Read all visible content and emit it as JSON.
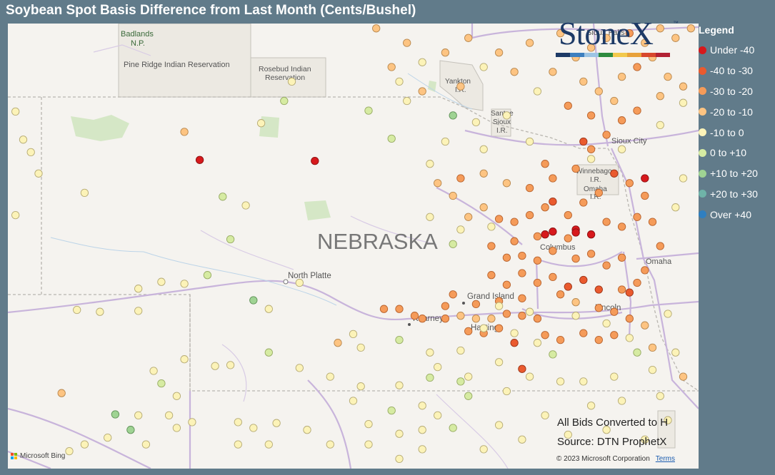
{
  "title": "Soybean Spot Basis Difference from Last Month (Cents/Bushel)",
  "legend": {
    "title": "Legend",
    "items": [
      {
        "label": "Under -40",
        "color": "#d7191c"
      },
      {
        "label": "-40 to -30",
        "color": "#ea5a2e"
      },
      {
        "label": "-30 to -20",
        "color": "#f59b59"
      },
      {
        "label": "-20 to -10",
        "color": "#fdc482"
      },
      {
        "label": "-10 to 0",
        "color": "#fcf3b8"
      },
      {
        "label": "0 to +10",
        "color": "#d6eba2"
      },
      {
        "label": "+10 to +20",
        "color": "#9fd393"
      },
      {
        "label": "+20 to +30",
        "color": "#6fb3a8"
      },
      {
        "label": "Over +40",
        "color": "#2f7fc0"
      }
    ]
  },
  "logo": {
    "text": "StoneX",
    "tm": "™"
  },
  "notes": {
    "line1": "All Bids Converted to H",
    "line2": "Source: DTN ProphetX"
  },
  "attribution": {
    "bing": "Microsoft Bing",
    "copyright": "© 2023 Microsoft Corporation",
    "terms": "Terms"
  },
  "map_labels": {
    "state": "NEBRASKA",
    "badlands": "Badlands",
    "badlands2": "N.P.",
    "pine_ridge": "Pine Ridge Indian Reservation",
    "rosebud1": "Rosebud Indian",
    "rosebud2": "Reservation",
    "yankton1": "Yankton",
    "yankton2": "I.R.",
    "santee1": "Santee",
    "santee2": "Sioux",
    "santee3": "I.R.",
    "winnebago1": "Winnebago",
    "winnebago2": "I.R.",
    "omaha_ir1": "Omaha",
    "omaha_ir2": "I.R.",
    "sioux_falls": "Sioux Falls",
    "sioux_city": "Sioux City",
    "columbus": "Columbus",
    "omaha": "Omaha",
    "north_platte": "North Platte",
    "grand_island": "Grand Island",
    "kearney": "Kearney",
    "hastings": "Hastings",
    "lincoln": "Lincoln"
  },
  "bids": [
    {
      "lon": -103.9,
      "lat": 42.69,
      "c": 4
    },
    {
      "lon": -103.8,
      "lat": 42.4,
      "c": 4
    },
    {
      "lon": -103.7,
      "lat": 42.27,
      "c": 4
    },
    {
      "lon": -103.6,
      "lat": 42.05,
      "c": 4
    },
    {
      "lon": -103.9,
      "lat": 41.62,
      "c": 4
    },
    {
      "lon": -103.0,
      "lat": 41.85,
      "c": 4
    },
    {
      "lon": -101.7,
      "lat": 42.48,
      "c": 3
    },
    {
      "lon": -101.5,
      "lat": 42.19,
      "c": 0
    },
    {
      "lon": -101.7,
      "lat": 40.91,
      "c": 4
    },
    {
      "lon": -102.0,
      "lat": 40.93,
      "c": 4
    },
    {
      "lon": -102.3,
      "lat": 40.86,
      "c": 4
    },
    {
      "lon": -102.8,
      "lat": 40.62,
      "c": 4
    },
    {
      "lon": -103.1,
      "lat": 40.64,
      "c": 4
    },
    {
      "lon": -101.4,
      "lat": 41.0,
      "c": 5
    },
    {
      "lon": -101.1,
      "lat": 41.37,
      "c": 5
    },
    {
      "lon": -100.9,
      "lat": 41.72,
      "c": 4
    },
    {
      "lon": -101.2,
      "lat": 41.81,
      "c": 5
    },
    {
      "lon": -100.7,
      "lat": 42.57,
      "c": 4
    },
    {
      "lon": -100.4,
      "lat": 42.8,
      "c": 5
    },
    {
      "lon": -100.3,
      "lat": 43.0,
      "c": 4
    },
    {
      "lon": -99.3,
      "lat": 42.7,
      "c": 5
    },
    {
      "lon": -99.0,
      "lat": 42.41,
      "c": 5
    },
    {
      "lon": -100.2,
      "lat": 40.92,
      "c": 4
    },
    {
      "lon": -100.8,
      "lat": 40.74,
      "c": 6
    },
    {
      "lon": -100.6,
      "lat": 40.65,
      "c": 4
    },
    {
      "lon": -99.5,
      "lat": 40.39,
      "c": 4
    },
    {
      "lon": -99.7,
      "lat": 40.3,
      "c": 3
    },
    {
      "lon": -99.4,
      "lat": 40.25,
      "c": 4
    },
    {
      "lon": -98.9,
      "lat": 40.33,
      "c": 5
    },
    {
      "lon": -98.5,
      "lat": 40.2,
      "c": 4
    },
    {
      "lon": -101.7,
      "lat": 40.13,
      "c": 4
    },
    {
      "lon": -101.3,
      "lat": 40.06,
      "c": 4
    },
    {
      "lon": -101.1,
      "lat": 40.07,
      "c": 4
    },
    {
      "lon": -100.6,
      "lat": 40.2,
      "c": 5
    },
    {
      "lon": -100.2,
      "lat": 40.04,
      "c": 4
    },
    {
      "lon": -99.8,
      "lat": 39.95,
      "c": 4
    },
    {
      "lon": -99.4,
      "lat": 39.85,
      "c": 4
    },
    {
      "lon": -98.9,
      "lat": 39.86,
      "c": 4
    },
    {
      "lon": -98.5,
      "lat": 39.94,
      "c": 5
    },
    {
      "lon": -98.0,
      "lat": 39.95,
      "c": 4
    },
    {
      "lon": -99.5,
      "lat": 39.7,
      "c": 4
    },
    {
      "lon": -99.0,
      "lat": 39.6,
      "c": 5
    },
    {
      "lon": -98.6,
      "lat": 39.65,
      "c": 4
    },
    {
      "lon": -103.3,
      "lat": 39.78,
      "c": 3
    },
    {
      "lon": -102.3,
      "lat": 40.63,
      "c": 4
    },
    {
      "lon": -101.8,
      "lat": 39.42,
      "c": 4
    },
    {
      "lon": -101.6,
      "lat": 39.48,
      "c": 4
    },
    {
      "lon": -101.0,
      "lat": 39.48,
      "c": 4
    },
    {
      "lon": -100.8,
      "lat": 39.42,
      "c": 4
    },
    {
      "lon": -100.5,
      "lat": 39.47,
      "c": 4
    },
    {
      "lon": -100.1,
      "lat": 39.4,
      "c": 4
    },
    {
      "lon": -101.9,
      "lat": 39.55,
      "c": 4
    },
    {
      "lon": -98.4,
      "lat": 39.55,
      "c": 4
    },
    {
      "lon": -98.6,
      "lat": 39.4,
      "c": 4
    },
    {
      "lon": -98.2,
      "lat": 39.42,
      "c": 5
    },
    {
      "lon": -98.9,
      "lat": 39.36,
      "c": 4
    },
    {
      "lon": -99.3,
      "lat": 39.46,
      "c": 4
    },
    {
      "lon": -102.1,
      "lat": 40.01,
      "c": 4
    },
    {
      "lon": -102.0,
      "lat": 39.88,
      "c": 5
    },
    {
      "lon": -101.8,
      "lat": 39.75,
      "c": 4
    },
    {
      "lon": -102.3,
      "lat": 39.55,
      "c": 4
    },
    {
      "lon": -102.6,
      "lat": 39.56,
      "c": 6
    },
    {
      "lon": -102.4,
      "lat": 39.4,
      "c": 6
    },
    {
      "lon": -102.7,
      "lat": 39.32,
      "c": 4
    },
    {
      "lon": -102.2,
      "lat": 39.25,
      "c": 4
    },
    {
      "lon": -101.0,
      "lat": 39.25,
      "c": 4
    },
    {
      "lon": -100.6,
      "lat": 39.25,
      "c": 4
    },
    {
      "lon": -99.8,
      "lat": 39.25,
      "c": 4
    },
    {
      "lon": -99.3,
      "lat": 39.25,
      "c": 4
    },
    {
      "lon": -103.0,
      "lat": 39.25,
      "c": 4
    },
    {
      "lon": -103.2,
      "lat": 39.18,
      "c": 4
    },
    {
      "lon": -98.9,
      "lat": 39.1,
      "c": 4
    },
    {
      "lon": -98.6,
      "lat": 39.2,
      "c": 4
    },
    {
      "lon": -99.1,
      "lat": 40.65,
      "c": 2
    },
    {
      "lon": -98.9,
      "lat": 40.65,
      "c": 2
    },
    {
      "lon": -98.7,
      "lat": 40.58,
      "c": 2
    },
    {
      "lon": -98.6,
      "lat": 40.55,
      "c": 2
    },
    {
      "lon": -98.3,
      "lat": 40.55,
      "c": 2
    },
    {
      "lon": -98.1,
      "lat": 40.58,
      "c": 3
    },
    {
      "lon": -97.9,
      "lat": 40.55,
      "c": 3
    },
    {
      "lon": -97.7,
      "lat": 40.55,
      "c": 3
    },
    {
      "lon": -97.5,
      "lat": 40.6,
      "c": 2
    },
    {
      "lon": -97.3,
      "lat": 40.58,
      "c": 2
    },
    {
      "lon": -97.1,
      "lat": 40.55,
      "c": 2
    },
    {
      "lon": -98.0,
      "lat": 40.42,
      "c": 2
    },
    {
      "lon": -97.8,
      "lat": 40.4,
      "c": 2
    },
    {
      "lon": -97.6,
      "lat": 40.45,
      "c": 2
    },
    {
      "lon": -97.4,
      "lat": 40.3,
      "c": 1
    },
    {
      "lon": -97.0,
      "lat": 40.38,
      "c": 2
    },
    {
      "lon": -96.8,
      "lat": 40.33,
      "c": 2
    },
    {
      "lon": -96.5,
      "lat": 40.4,
      "c": 2
    },
    {
      "lon": -96.3,
      "lat": 40.33,
      "c": 2
    },
    {
      "lon": -96.1,
      "lat": 40.38,
      "c": 2
    },
    {
      "lon": -98.3,
      "lat": 40.68,
      "c": 2
    },
    {
      "lon": -98.2,
      "lat": 40.8,
      "c": 2
    },
    {
      "lon": -97.9,
      "lat": 40.7,
      "c": 2
    },
    {
      "lon": -97.6,
      "lat": 40.73,
      "c": 2
    },
    {
      "lon": -97.3,
      "lat": 40.76,
      "c": 2
    },
    {
      "lon": -97.5,
      "lat": 40.9,
      "c": 2
    },
    {
      "lon": -97.7,
      "lat": 41.0,
      "c": 2
    },
    {
      "lon": -97.3,
      "lat": 41.02,
      "c": 2
    },
    {
      "lon": -97.1,
      "lat": 40.92,
      "c": 2
    },
    {
      "lon": -96.9,
      "lat": 40.98,
      "c": 2
    },
    {
      "lon": -96.7,
      "lat": 40.88,
      "c": 1
    },
    {
      "lon": -96.5,
      "lat": 40.95,
      "c": 1
    },
    {
      "lon": -96.8,
      "lat": 40.8,
      "c": 2
    },
    {
      "lon": -96.6,
      "lat": 40.72,
      "c": 3
    },
    {
      "lon": -96.3,
      "lat": 40.66,
      "c": 2
    },
    {
      "lon": -96.1,
      "lat": 40.62,
      "c": 2
    },
    {
      "lon": -95.9,
      "lat": 40.55,
      "c": 2
    },
    {
      "lon": -95.7,
      "lat": 40.48,
      "c": 3
    },
    {
      "lon": -96.0,
      "lat": 40.85,
      "c": 2
    },
    {
      "lon": -95.8,
      "lat": 40.92,
      "c": 2
    },
    {
      "lon": -95.7,
      "lat": 41.05,
      "c": 2
    },
    {
      "lon": -96.0,
      "lat": 41.18,
      "c": 2
    },
    {
      "lon": -96.2,
      "lat": 41.1,
      "c": 2
    },
    {
      "lon": -96.4,
      "lat": 41.22,
      "c": 2
    },
    {
      "lon": -96.6,
      "lat": 41.17,
      "c": 2
    },
    {
      "lon": -96.9,
      "lat": 41.25,
      "c": 2
    },
    {
      "lon": -97.1,
      "lat": 41.15,
      "c": 2
    },
    {
      "lon": -97.3,
      "lat": 41.2,
      "c": 2
    },
    {
      "lon": -97.5,
      "lat": 41.18,
      "c": 2
    },
    {
      "lon": -97.7,
      "lat": 41.3,
      "c": 2
    },
    {
      "lon": -97.4,
      "lat": 41.35,
      "c": 2
    },
    {
      "lon": -97.1,
      "lat": 41.4,
      "c": 2
    },
    {
      "lon": -96.9,
      "lat": 41.45,
      "c": 0
    },
    {
      "lon": -96.6,
      "lat": 41.47,
      "c": 0
    },
    {
      "lon": -96.4,
      "lat": 41.42,
      "c": 0
    },
    {
      "lon": -96.7,
      "lat": 41.38,
      "c": 2
    },
    {
      "lon": -96.2,
      "lat": 41.55,
      "c": 2
    },
    {
      "lon": -96.0,
      "lat": 41.5,
      "c": 2
    },
    {
      "lon": -95.8,
      "lat": 41.6,
      "c": 2
    },
    {
      "lon": -95.6,
      "lat": 41.55,
      "c": 2
    },
    {
      "lon": -95.5,
      "lat": 41.3,
      "c": 2
    },
    {
      "lon": -95.7,
      "lat": 41.82,
      "c": 2
    },
    {
      "lon": -95.9,
      "lat": 41.95,
      "c": 2
    },
    {
      "lon": -96.1,
      "lat": 42.05,
      "c": 1
    },
    {
      "lon": -96.3,
      "lat": 41.85,
      "c": 2
    },
    {
      "lon": -96.5,
      "lat": 41.75,
      "c": 2
    },
    {
      "lon": -96.7,
      "lat": 41.62,
      "c": 2
    },
    {
      "lon": -97.0,
      "lat": 41.7,
      "c": 2
    },
    {
      "lon": -97.2,
      "lat": 41.62,
      "c": 2
    },
    {
      "lon": -97.4,
      "lat": 41.55,
      "c": 2
    },
    {
      "lon": -97.6,
      "lat": 41.58,
      "c": 2
    },
    {
      "lon": -97.8,
      "lat": 41.7,
      "c": 3
    },
    {
      "lon": -98.0,
      "lat": 41.6,
      "c": 3
    },
    {
      "lon": -98.2,
      "lat": 41.82,
      "c": 3
    },
    {
      "lon": -98.4,
      "lat": 41.95,
      "c": 3
    },
    {
      "lon": -98.1,
      "lat": 42.0,
      "c": 2
    },
    {
      "lon": -97.8,
      "lat": 42.05,
      "c": 3
    },
    {
      "lon": -97.5,
      "lat": 41.95,
      "c": 3
    },
    {
      "lon": -97.2,
      "lat": 41.9,
      "c": 2
    },
    {
      "lon": -96.9,
      "lat": 42.0,
      "c": 2
    },
    {
      "lon": -96.6,
      "lat": 42.1,
      "c": 2
    },
    {
      "lon": -97.0,
      "lat": 42.15,
      "c": 2
    },
    {
      "lon": -96.4,
      "lat": 42.3,
      "c": 2
    },
    {
      "lon": -96.2,
      "lat": 42.45,
      "c": 2
    },
    {
      "lon": -96.0,
      "lat": 42.6,
      "c": 2
    },
    {
      "lon": -95.8,
      "lat": 42.7,
      "c": 2
    },
    {
      "lon": -96.1,
      "lat": 42.8,
      "c": 3
    },
    {
      "lon": -96.3,
      "lat": 42.9,
      "c": 3
    },
    {
      "lon": -96.5,
      "lat": 43.0,
      "c": 3
    },
    {
      "lon": -96.0,
      "lat": 43.05,
      "c": 3
    },
    {
      "lon": -95.8,
      "lat": 43.15,
      "c": 2
    },
    {
      "lon": -95.6,
      "lat": 43.25,
      "c": 3
    },
    {
      "lon": -95.4,
      "lat": 43.05,
      "c": 3
    },
    {
      "lon": -95.2,
      "lat": 42.95,
      "c": 3
    },
    {
      "lon": -95.5,
      "lat": 42.85,
      "c": 3
    },
    {
      "lon": -96.6,
      "lat": 43.25,
      "c": 3
    },
    {
      "lon": -96.4,
      "lat": 43.35,
      "c": 3
    },
    {
      "lon": -96.2,
      "lat": 43.45,
      "c": 3
    },
    {
      "lon": -95.9,
      "lat": 43.5,
      "c": 2
    },
    {
      "lon": -95.7,
      "lat": 43.4,
      "c": 3
    },
    {
      "lon": -95.5,
      "lat": 43.55,
      "c": 3
    },
    {
      "lon": -95.3,
      "lat": 43.45,
      "c": 3
    },
    {
      "lon": -95.1,
      "lat": 43.55,
      "c": 3
    },
    {
      "lon": -96.8,
      "lat": 43.5,
      "c": 3
    },
    {
      "lon": -96.9,
      "lat": 43.1,
      "c": 3
    },
    {
      "lon": -97.1,
      "lat": 42.9,
      "c": 4
    },
    {
      "lon": -96.7,
      "lat": 42.75,
      "c": 2
    },
    {
      "lon": -96.4,
      "lat": 42.65,
      "c": 2
    },
    {
      "lon": -97.4,
      "lat": 43.1,
      "c": 3
    },
    {
      "lon": -97.6,
      "lat": 43.3,
      "c": 3
    },
    {
      "lon": -97.2,
      "lat": 43.4,
      "c": 3
    },
    {
      "lon": -97.8,
      "lat": 43.15,
      "c": 4
    },
    {
      "lon": -98.0,
      "lat": 43.45,
      "c": 3
    },
    {
      "lon": -98.3,
      "lat": 43.3,
      "c": 3
    },
    {
      "lon": -98.1,
      "lat": 42.95,
      "c": 3
    },
    {
      "lon": -98.6,
      "lat": 42.9,
      "c": 3
    },
    {
      "lon": -99.0,
      "lat": 43.15,
      "c": 3
    },
    {
      "lon": -98.8,
      "lat": 43.4,
      "c": 3
    },
    {
      "lon": -99.2,
      "lat": 43.55,
      "c": 3
    },
    {
      "lon": -96.5,
      "lat": 42.38,
      "c": 1
    },
    {
      "lon": -97.0,
      "lat": 41.42,
      "c": 0
    },
    {
      "lon": -96.6,
      "lat": 41.44,
      "c": 0
    },
    {
      "lon": -96.3,
      "lat": 40.85,
      "c": 1
    },
    {
      "lon": -97.3,
      "lat": 40.03,
      "c": 1
    },
    {
      "lon": -100.0,
      "lat": 42.18,
      "c": 0
    },
    {
      "lon": -95.7,
      "lat": 42.0,
      "c": 0
    },
    {
      "lon": -95.9,
      "lat": 40.82,
      "c": 1
    },
    {
      "lon": -96.9,
      "lat": 41.76,
      "c": 1
    },
    {
      "lon": -97.6,
      "lat": 40.68,
      "c": 4
    },
    {
      "lon": -97.4,
      "lat": 40.4,
      "c": 4
    },
    {
      "lon": -97.2,
      "lat": 40.62,
      "c": 4
    },
    {
      "lon": -96.6,
      "lat": 40.58,
      "c": 4
    },
    {
      "lon": -96.2,
      "lat": 40.5,
      "c": 4
    },
    {
      "lon": -95.9,
      "lat": 40.35,
      "c": 4
    },
    {
      "lon": -95.4,
      "lat": 40.6,
      "c": 4
    },
    {
      "lon": -98.2,
      "lat": 41.32,
      "c": 5
    },
    {
      "lon": -98.1,
      "lat": 41.47,
      "c": 4
    },
    {
      "lon": -98.5,
      "lat": 41.6,
      "c": 4
    },
    {
      "lon": -97.7,
      "lat": 41.5,
      "c": 4
    },
    {
      "lon": -95.3,
      "lat": 41.7,
      "c": 4
    },
    {
      "lon": -95.2,
      "lat": 42.0,
      "c": 4
    },
    {
      "lon": -96.0,
      "lat": 42.3,
      "c": 4
    },
    {
      "lon": -95.5,
      "lat": 42.55,
      "c": 4
    },
    {
      "lon": -95.2,
      "lat": 42.78,
      "c": 4
    },
    {
      "lon": -98.5,
      "lat": 42.15,
      "c": 4
    },
    {
      "lon": -98.3,
      "lat": 42.38,
      "c": 4
    },
    {
      "lon": -97.8,
      "lat": 42.3,
      "c": 4
    },
    {
      "lon": -97.2,
      "lat": 42.38,
      "c": 4
    },
    {
      "lon": -97.5,
      "lat": 42.65,
      "c": 4
    },
    {
      "lon": -97.9,
      "lat": 42.58,
      "c": 4
    },
    {
      "lon": -98.2,
      "lat": 42.65,
      "c": 6
    },
    {
      "lon": -98.8,
      "lat": 42.8,
      "c": 4
    },
    {
      "lon": -98.9,
      "lat": 43.0,
      "c": 4
    },
    {
      "lon": -98.6,
      "lat": 43.2,
      "c": 4
    },
    {
      "lon": -98.3,
      "lat": 43.6,
      "c": 4
    },
    {
      "lon": -97.5,
      "lat": 43.6,
      "c": 4
    },
    {
      "lon": -96.4,
      "lat": 42.2,
      "c": 4
    },
    {
      "lon": -98.0,
      "lat": 39.75,
      "c": 5
    },
    {
      "lon": -97.5,
      "lat": 39.8,
      "c": 4
    },
    {
      "lon": -97.2,
      "lat": 39.95,
      "c": 4
    },
    {
      "lon": -96.8,
      "lat": 39.9,
      "c": 4
    },
    {
      "lon": -96.5,
      "lat": 39.9,
      "c": 4
    },
    {
      "lon": -96.1,
      "lat": 39.95,
      "c": 4
    },
    {
      "lon": -95.6,
      "lat": 40.02,
      "c": 4
    },
    {
      "lon": -95.3,
      "lat": 40.2,
      "c": 4
    },
    {
      "lon": -95.5,
      "lat": 39.75,
      "c": 4
    },
    {
      "lon": -96.0,
      "lat": 39.7,
      "c": 4
    },
    {
      "lon": -96.4,
      "lat": 39.65,
      "c": 4
    },
    {
      "lon": -97.0,
      "lat": 39.55,
      "c": 4
    },
    {
      "lon": -97.6,
      "lat": 39.45,
      "c": 4
    },
    {
      "lon": -96.7,
      "lat": 39.35,
      "c": 4
    },
    {
      "lon": -96.2,
      "lat": 39.4,
      "c": 4
    },
    {
      "lon": -95.7,
      "lat": 39.3,
      "c": 4
    },
    {
      "lon": -97.3,
      "lat": 39.3,
      "c": 4
    },
    {
      "lon": -97.8,
      "lat": 39.2,
      "c": 4
    },
    {
      "lon": -95.4,
      "lat": 39.5,
      "c": 4
    },
    {
      "lon": -95.8,
      "lat": 40.2,
      "c": 5
    },
    {
      "lon": -96.9,
      "lat": 40.18,
      "c": 5
    },
    {
      "lon": -97.1,
      "lat": 40.3,
      "c": 4
    },
    {
      "lon": -97.6,
      "lat": 40.1,
      "c": 4
    },
    {
      "lon": -95.2,
      "lat": 39.95,
      "c": 3
    },
    {
      "lon": -95.6,
      "lat": 40.25,
      "c": 3
    },
    {
      "lon": -97.8,
      "lat": 40.45,
      "c": 4
    },
    {
      "lon": -98.1,
      "lat": 40.22,
      "c": 4
    },
    {
      "lon": -98.4,
      "lat": 40.05,
      "c": 4
    },
    {
      "lon": -98.1,
      "lat": 39.9,
      "c": 5
    }
  ]
}
